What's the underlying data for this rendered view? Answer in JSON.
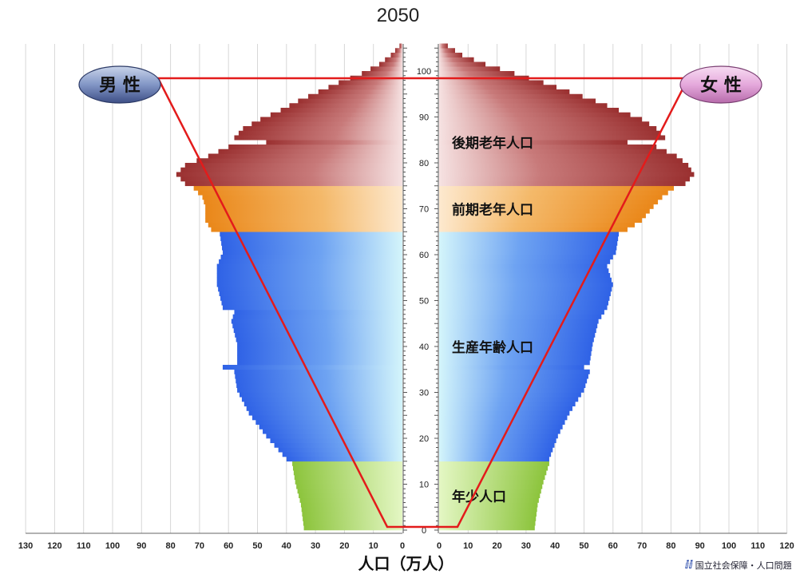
{
  "title": "2050",
  "xlabel": "人口（万人）",
  "credit_logo": "ⅈⅈ",
  "credit": "国立社会保障・人口問題",
  "chart_data": {
    "type": "population-pyramid",
    "title": "2050",
    "xlabel": "人口（万人）",
    "x_ticks_left": [
      130,
      120,
      110,
      100,
      90,
      80,
      70,
      60,
      50,
      40,
      30,
      20,
      10,
      0
    ],
    "x_ticks_right": [
      0,
      10,
      20,
      30,
      40,
      50,
      60,
      70,
      80,
      90,
      100,
      110,
      120
    ],
    "xlim": [
      0,
      130
    ],
    "ylim": [
      0,
      105
    ],
    "y_ticks": [
      0,
      10,
      20,
      30,
      40,
      50,
      60,
      70,
      80,
      90,
      100
    ],
    "sex_labels": {
      "male": "男 性",
      "female": "女 性"
    },
    "age_groups": [
      {
        "label": "年少人口",
        "from_age": 0,
        "to_age": 14,
        "color": "#8cc43c"
      },
      {
        "label": "生産年齢人口",
        "from_age": 15,
        "to_age": 64,
        "color": "#3a6fe8"
      },
      {
        "label": "前期老年人口",
        "from_age": 65,
        "to_age": 74,
        "color": "#ef8f1e"
      },
      {
        "label": "後期老年人口",
        "from_age": 75,
        "to_age": 105,
        "color": "#a43c3c"
      }
    ],
    "male_profile": [
      [
        0,
        34
      ],
      [
        5,
        35
      ],
      [
        10,
        37
      ],
      [
        14,
        38
      ],
      [
        15,
        40
      ],
      [
        20,
        47
      ],
      [
        25,
        53
      ],
      [
        30,
        57
      ],
      [
        34,
        58
      ],
      [
        35,
        62
      ],
      [
        36,
        57
      ],
      [
        40,
        57
      ],
      [
        45,
        59
      ],
      [
        47,
        58
      ],
      [
        48,
        62
      ],
      [
        53,
        64
      ],
      [
        57,
        64
      ],
      [
        60,
        62
      ],
      [
        64,
        63
      ],
      [
        65,
        66
      ],
      [
        67,
        68
      ],
      [
        70,
        68
      ],
      [
        72,
        69
      ],
      [
        74,
        72
      ],
      [
        75,
        75
      ],
      [
        77,
        78
      ],
      [
        79,
        75
      ],
      [
        81,
        67
      ],
      [
        83,
        60
      ],
      [
        84,
        47
      ],
      [
        85,
        58
      ],
      [
        87,
        55
      ],
      [
        89,
        49
      ],
      [
        91,
        42
      ],
      [
        93,
        36
      ],
      [
        95,
        29
      ],
      [
        97,
        22
      ],
      [
        99,
        14
      ],
      [
        101,
        8
      ],
      [
        103,
        4
      ],
      [
        105,
        1
      ]
    ],
    "female_profile": [
      [
        0,
        33
      ],
      [
        5,
        34
      ],
      [
        10,
        36
      ],
      [
        14,
        38
      ],
      [
        15,
        38
      ],
      [
        20,
        41
      ],
      [
        25,
        45
      ],
      [
        30,
        50
      ],
      [
        34,
        52
      ],
      [
        35,
        50
      ],
      [
        36,
        52
      ],
      [
        40,
        53
      ],
      [
        45,
        55
      ],
      [
        48,
        58
      ],
      [
        53,
        60
      ],
      [
        57,
        58
      ],
      [
        60,
        61
      ],
      [
        64,
        62
      ],
      [
        65,
        65
      ],
      [
        67,
        70
      ],
      [
        70,
        74
      ],
      [
        72,
        77
      ],
      [
        74,
        81
      ],
      [
        75,
        85
      ],
      [
        77,
        88
      ],
      [
        79,
        86
      ],
      [
        81,
        82
      ],
      [
        83,
        75
      ],
      [
        84,
        65
      ],
      [
        85,
        78
      ],
      [
        87,
        75
      ],
      [
        89,
        70
      ],
      [
        91,
        62
      ],
      [
        93,
        54
      ],
      [
        95,
        45
      ],
      [
        97,
        36
      ],
      [
        99,
        26
      ],
      [
        101,
        16
      ],
      [
        103,
        8
      ],
      [
        105,
        3
      ]
    ],
    "annotation": "red trapezoid overlay from the bottom center up to the sex labels"
  }
}
